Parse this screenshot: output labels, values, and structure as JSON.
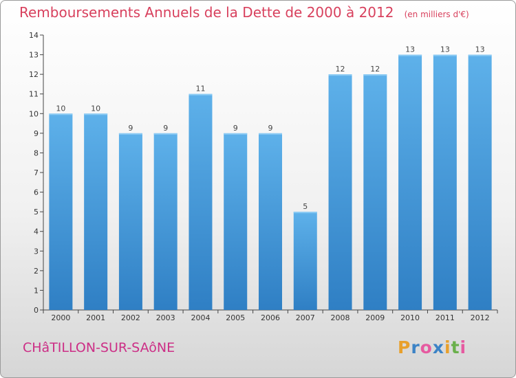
{
  "header": {
    "title": "Remboursements Annuels de la Dette de 2000 à 2012",
    "unit": "(en milliers d'€)"
  },
  "footer": {
    "commune": "CHâTILLON-SUR-SAôNE",
    "brand_letters": [
      "P",
      "r",
      "o",
      "x",
      "i",
      "t",
      "i"
    ]
  },
  "colors": {
    "title": "#d8405d",
    "commune": "#cc2e86",
    "bar_top": "#5eb1ea",
    "bar_bottom": "#2f7fc4",
    "brand": [
      "#e8a02c",
      "#3c83c6",
      "#e65aa0",
      "#3c83c6",
      "#e8a02c",
      "#6ab04c",
      "#e65aa0"
    ]
  },
  "chart_data": {
    "type": "bar",
    "categories": [
      "2000",
      "2001",
      "2002",
      "2003",
      "2004",
      "2005",
      "2006",
      "2007",
      "2008",
      "2009",
      "2010",
      "2011",
      "2012"
    ],
    "values": [
      10,
      10,
      9,
      9,
      11,
      9,
      9,
      5,
      12,
      12,
      13,
      13,
      13
    ],
    "data_labels": [
      "10",
      "10",
      "9",
      "9",
      "11",
      "9",
      "9",
      "5",
      "12",
      "12",
      "13",
      "13",
      "13"
    ],
    "yticks": [
      0,
      1,
      2,
      3,
      4,
      5,
      6,
      7,
      8,
      9,
      10,
      11,
      12,
      13,
      14
    ],
    "ylim": [
      0,
      14
    ],
    "grid": false
  }
}
